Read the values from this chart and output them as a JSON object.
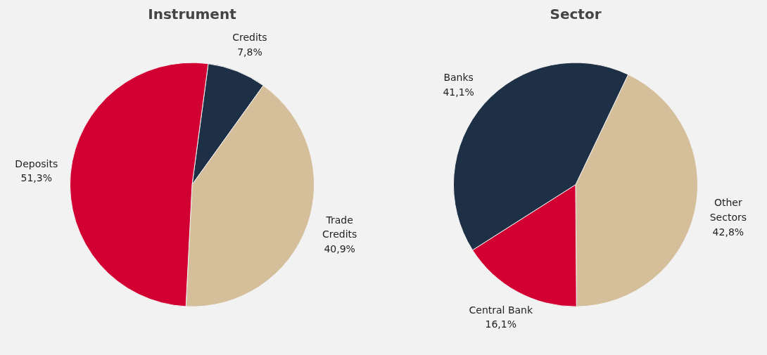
{
  "chart_data": [
    {
      "type": "pie",
      "title": "Instrument",
      "categories": [
        "Credits",
        "Trade Credits",
        "Deposits"
      ],
      "values": [
        7.8,
        40.9,
        51.3
      ],
      "colors": [
        "#1d3045",
        "#d5bf9b",
        "#d20032"
      ],
      "value_labels": [
        "7,8%",
        "40,9%",
        "51,3%"
      ]
    },
    {
      "type": "pie",
      "title": "Sector",
      "categories": [
        "Other Sectors",
        "Central Bank",
        "Banks"
      ],
      "values": [
        42.8,
        16.1,
        41.1
      ],
      "colors": [
        "#d5bf9b",
        "#d20032",
        "#1d3045"
      ],
      "value_labels": [
        "42,8%",
        "16,1%",
        "41,1%"
      ]
    }
  ]
}
